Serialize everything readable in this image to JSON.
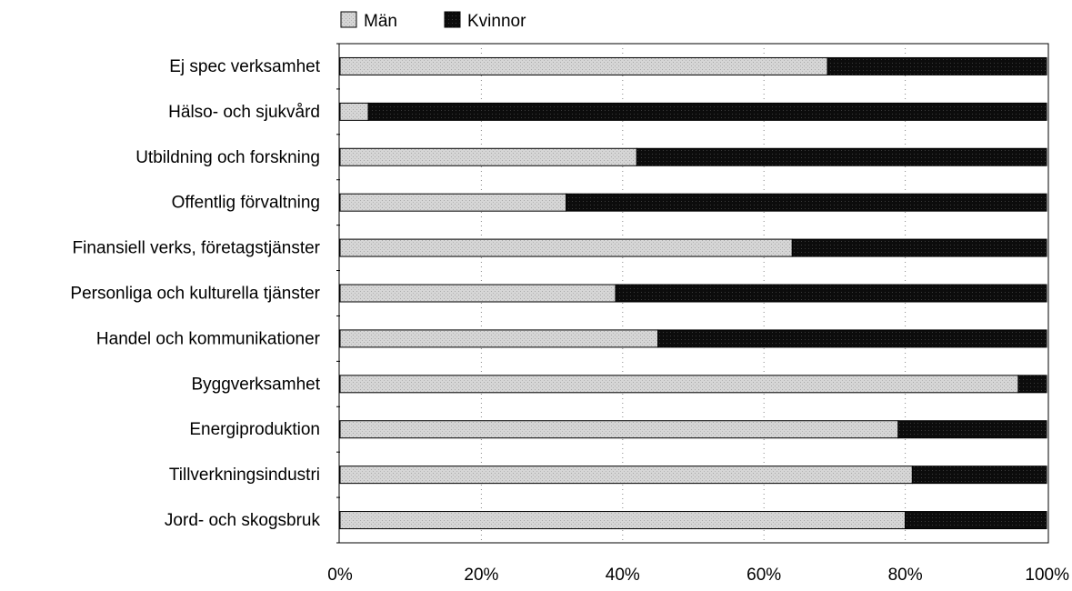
{
  "chart_data": {
    "type": "bar",
    "orientation": "horizontal",
    "stacked": true,
    "percent": true,
    "categories": [
      "Ej spec verksamhet",
      "Hälso- och sjukvård",
      "Utbildning och forskning",
      "Offentlig förvaltning",
      "Finansiell verks, företagstjänster",
      "Personliga och kulturella tjänster",
      "Handel och kommunikationer",
      "Byggverksamhet",
      "Energiproduktion",
      "Tillverkningsindustri",
      "Jord- och skogsbruk"
    ],
    "series": [
      {
        "name": "Män",
        "color": "#d4d4d4",
        "values": [
          69,
          4,
          42,
          32,
          64,
          39,
          45,
          96,
          79,
          81,
          80
        ]
      },
      {
        "name": "Kvinnor",
        "color": "#0d0d0d",
        "values": [
          31,
          96,
          58,
          68,
          36,
          61,
          55,
          4,
          21,
          19,
          20
        ]
      }
    ],
    "xlim": [
      0,
      100
    ],
    "xticks": [
      "0%",
      "20%",
      "40%",
      "60%",
      "80%",
      "100%"
    ],
    "title": "",
    "xlabel": "",
    "ylabel": "",
    "grid": "vertical-dotted",
    "legend": "top-left"
  }
}
